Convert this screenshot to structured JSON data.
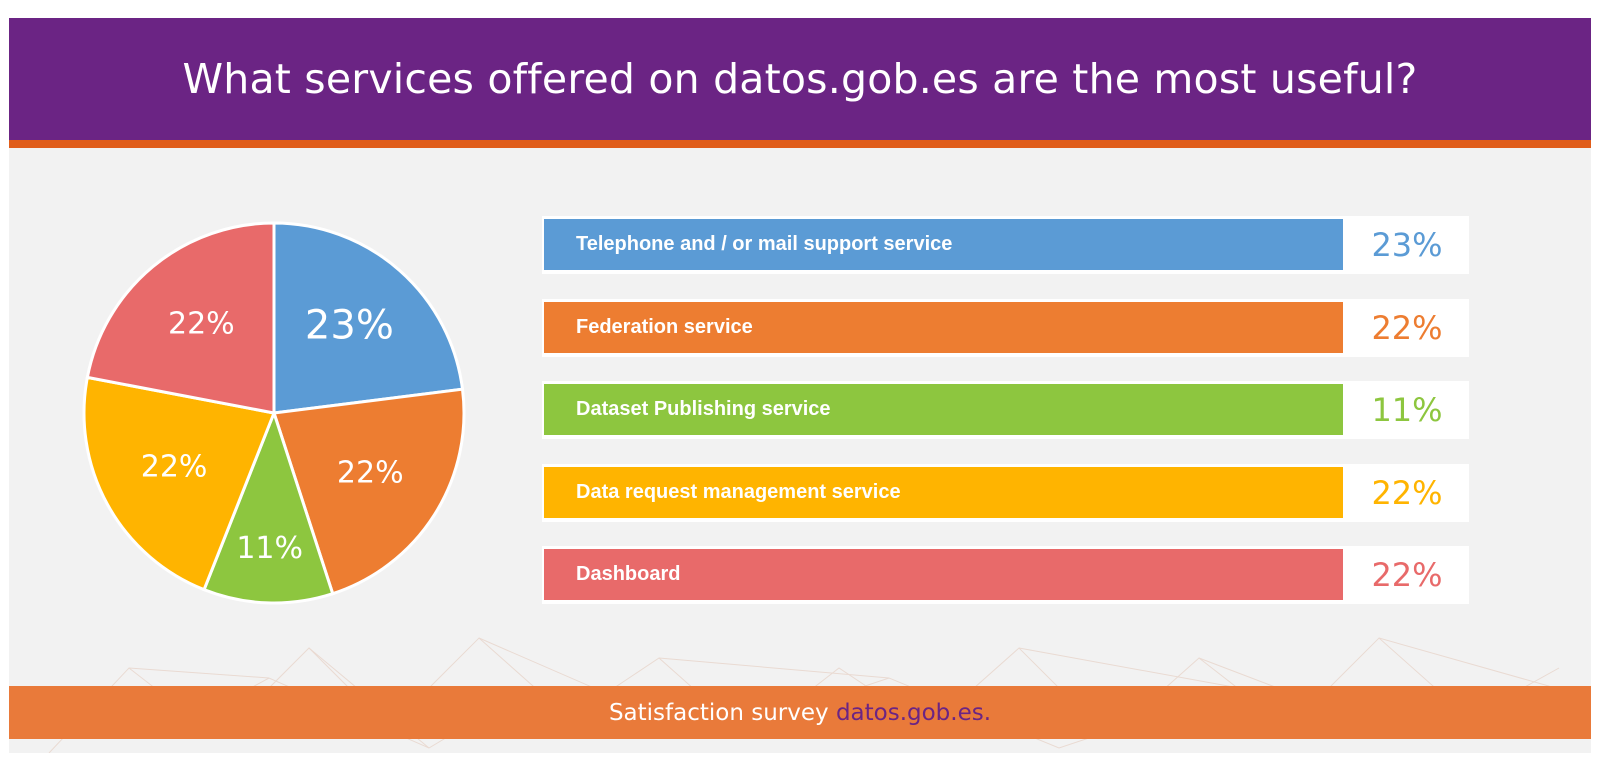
{
  "header": {
    "title": "What services offered on datos.gob.es are the most useful?"
  },
  "footer": {
    "text": "Satisfaction survey ",
    "link": "datos.gob.es."
  },
  "colors": {
    "header_bg": "#6b2484",
    "stripe": "#e05d1a",
    "footer_bg": "#e97a3a",
    "blue": "#5b9bd5",
    "orange": "#ed7d31",
    "green": "#8dc63f",
    "yellow": "#ffb400",
    "red": "#e86a6a"
  },
  "chart_data": {
    "type": "pie",
    "categories": [
      "Telephone and / or mail support service",
      "Federation service",
      "Dataset Publishing service",
      "Data request management service",
      "Dashboard"
    ],
    "values": [
      23,
      22,
      11,
      22,
      22
    ],
    "value_labels": [
      "23%",
      "22%",
      "11%",
      "22%",
      "22%"
    ],
    "colors": [
      "#5b9bd5",
      "#ed7d31",
      "#8dc63f",
      "#ffb400",
      "#e86a6a"
    ],
    "title": "What services offered on datos.gob.es are the most useful?"
  }
}
